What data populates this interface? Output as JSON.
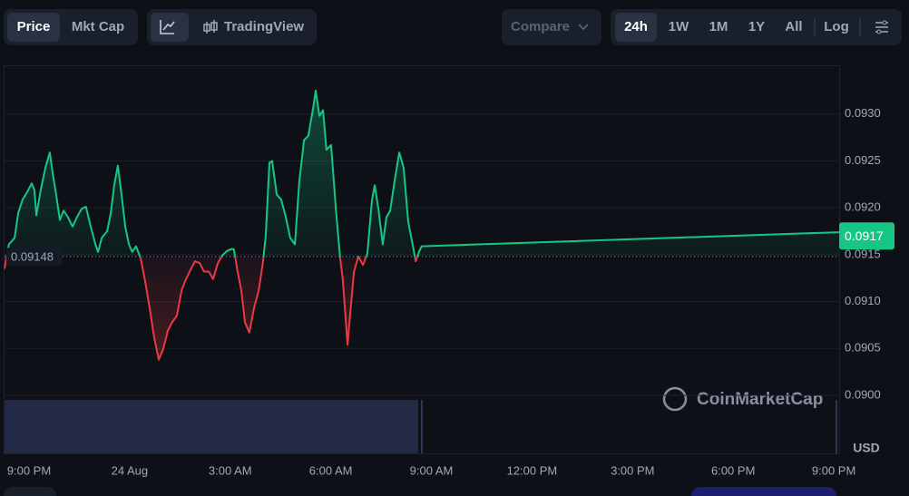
{
  "toolbar": {
    "view_buttons": [
      "Price",
      "Mkt Cap"
    ],
    "tool_button": "TradingView",
    "compare": "Compare",
    "range_buttons": [
      "24h",
      "1W",
      "1M",
      "1Y",
      "All"
    ],
    "scale_button": "Log"
  },
  "chart_data": {
    "type": "line",
    "watermark": "CoinMarketCap",
    "currency": "USD",
    "baseline": 0.09148,
    "current_price": 0.0917,
    "up_color": "#16c784",
    "down_color": "#ea3943",
    "x": [
      20.27,
      20.4,
      20.57,
      20.68,
      20.81,
      20.95,
      21.08,
      21.16,
      21.22,
      21.35,
      21.49,
      21.62,
      21.7,
      21.81,
      21.92,
      22.03,
      22.16,
      22.3,
      22.43,
      22.57,
      22.7,
      22.84,
      22.98,
      23.06,
      23.17,
      23.33,
      23.44,
      23.54,
      23.65,
      23.76,
      23.87,
      23.98,
      24.08,
      24.19,
      24.33,
      24.46,
      24.6,
      24.73,
      24.87,
      25.0,
      25.14,
      25.27,
      25.41,
      25.55,
      25.68,
      25.82,
      25.95,
      26.09,
      26.22,
      26.36,
      26.49,
      26.63,
      26.76,
      26.9,
      27.03,
      27.11,
      27.22,
      27.33,
      27.44,
      27.57,
      27.71,
      27.85,
      27.98,
      28.06,
      28.17,
      28.25,
      28.39,
      28.52,
      28.66,
      28.79,
      28.93,
      29.06,
      29.2,
      29.33,
      29.47,
      29.55,
      29.66,
      29.77,
      29.87,
      30.01,
      30.15,
      30.28,
      30.36,
      30.5,
      30.58,
      30.69,
      30.82,
      30.96,
      31.09,
      31.23,
      31.31,
      31.42,
      31.55,
      31.66,
      31.77,
      31.9,
      32.04,
      32.17,
      32.31,
      32.44,
      32.53,
      32.63,
      32.71,
      45.16
    ],
    "series": [
      {
        "name": "Price",
        "values": [
          0.09135,
          0.09161,
          0.09168,
          0.09195,
          0.09209,
          0.09217,
          0.09226,
          0.09219,
          0.09192,
          0.09219,
          0.09243,
          0.09259,
          0.09238,
          0.09214,
          0.09187,
          0.09197,
          0.0919,
          0.0918,
          0.0919,
          0.09199,
          0.09201,
          0.0918,
          0.09161,
          0.09153,
          0.09168,
          0.09175,
          0.09195,
          0.09224,
          0.09245,
          0.09214,
          0.0918,
          0.09161,
          0.09153,
          0.09159,
          0.09146,
          0.09122,
          0.09093,
          0.09062,
          0.09038,
          0.09049,
          0.09069,
          0.09078,
          0.09085,
          0.09112,
          0.09124,
          0.09134,
          0.09143,
          0.09141,
          0.09132,
          0.09132,
          0.09124,
          0.09141,
          0.09149,
          0.09154,
          0.09156,
          0.09156,
          0.09132,
          0.09112,
          0.09078,
          0.09067,
          0.09093,
          0.09112,
          0.09143,
          0.0917,
          0.09248,
          0.0925,
          0.09214,
          0.09209,
          0.0919,
          0.09168,
          0.09161,
          0.09228,
          0.09272,
          0.09277,
          0.09306,
          0.09325,
          0.09298,
          0.09304,
          0.09262,
          0.09267,
          0.09199,
          0.09146,
          0.09122,
          0.09054,
          0.09088,
          0.09132,
          0.09148,
          0.09139,
          0.09151,
          0.09209,
          0.09224,
          0.09199,
          0.09161,
          0.0919,
          0.09197,
          0.09228,
          0.09259,
          0.09243,
          0.09185,
          0.09161,
          0.09143,
          0.09153,
          0.09159,
          0.09174
        ]
      }
    ],
    "xlim": [
      20.27,
      45.16
    ],
    "xticks": [
      {
        "value": 21,
        "label": "9:00 PM"
      },
      {
        "value": 24,
        "label": "24 Aug"
      },
      {
        "value": 27,
        "label": "3:00 AM"
      },
      {
        "value": 30,
        "label": "6:00 AM"
      },
      {
        "value": 33,
        "label": "9:00 AM"
      },
      {
        "value": 36,
        "label": "12:00 PM"
      },
      {
        "value": 39,
        "label": "3:00 PM"
      },
      {
        "value": 42,
        "label": "6:00 PM"
      },
      {
        "value": 45,
        "label": "9:00 PM"
      }
    ],
    "ylim": [
      0.09,
      0.09352
    ],
    "yticks": [
      {
        "value": 0.09,
        "label": "0.0900"
      },
      {
        "value": 0.0905,
        "label": "0.0905"
      },
      {
        "value": 0.091,
        "label": "0.0910"
      },
      {
        "value": 0.0915,
        "label": "0.0915"
      },
      {
        "value": 0.092,
        "label": "0.0920"
      },
      {
        "value": 0.0925,
        "label": "0.0925"
      },
      {
        "value": 0.093,
        "label": "0.0930"
      }
    ],
    "grid": true
  }
}
